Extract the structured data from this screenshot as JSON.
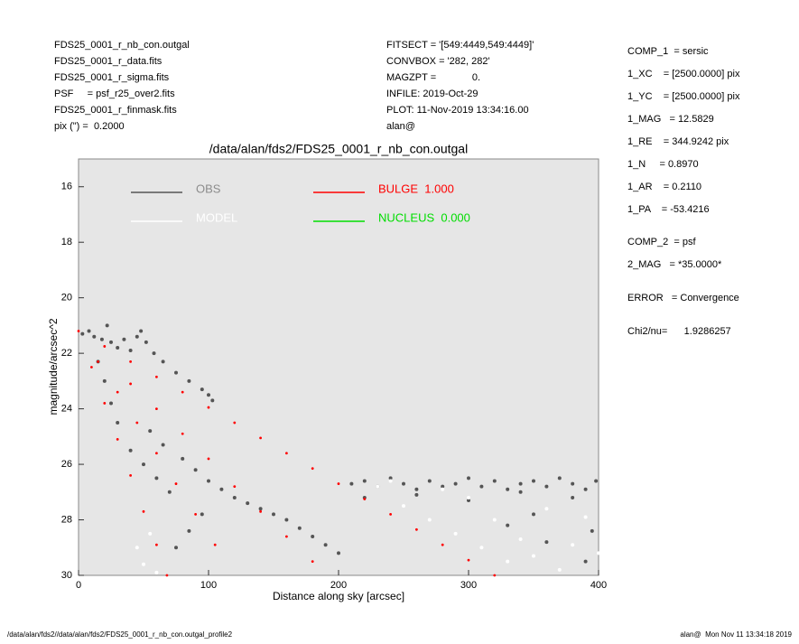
{
  "header": {
    "left": [
      "FDS25_0001_r_nb_con.outgal",
      "FDS25_0001_r_data.fits",
      "FDS25_0001_r_sigma.fits",
      "PSF     = psf_r25_over2.fits",
      "FDS25_0001_r_finmask.fits",
      "pix (\") =  0.2000"
    ],
    "middle": [
      "FITSECT = '[549:4449,549:4449]'",
      "CONVBOX = '282, 282'",
      "MAGZPT =             0.",
      "INFILE: 2019-Oct-29",
      "PLOT: 11-Nov-2019 13:34:16.00",
      "alan@"
    ]
  },
  "parameters": [
    "COMP_1  = sersic",
    "1_XC    = [2500.0000] pix",
    "1_YC    = [2500.0000] pix",
    "1_MAG   = 12.5829",
    "1_RE    = 344.9242 pix",
    "1_N     = 0.8970",
    "1_AR    = 0.2110",
    "1_PA    = -53.4216",
    "COMP_2  = psf",
    "2_MAG   = *35.0000*",
    "ERROR   = Convergence",
    "Chi2/nu=      1.9286257"
  ],
  "footer": {
    "left": "/data/alan/fds2//data/alan/fds2/FDS25_0001_r_nb_con.outgal_profile2",
    "right": "alan@  Mon Nov 11 13:34:18 2019"
  },
  "chart_data": {
    "type": "scatter",
    "title": "/data/alan/fds2/FDS25_0001_r_nb_con.outgal",
    "x_label": "Distance along sky [arcsec]",
    "y_label": "magnitude/arcsec^2",
    "xlim": [
      0,
      400
    ],
    "xticks": [
      0,
      100,
      200,
      300,
      400
    ],
    "ylim": [
      30,
      15
    ],
    "yticks": [
      16,
      18,
      20,
      22,
      24,
      26,
      28,
      30
    ],
    "grid": false,
    "legend": "upper left",
    "series": [
      {
        "name": "OBS",
        "color": "#555555",
        "x": [
          3,
          8,
          12,
          18,
          22,
          25,
          30,
          35,
          40,
          45,
          48,
          52,
          58,
          65,
          75,
          85,
          95,
          100,
          103,
          15,
          20,
          25,
          30,
          40,
          50,
          60,
          70,
          55,
          65,
          80,
          90,
          100,
          110,
          120,
          130,
          140,
          150,
          160,
          170,
          180,
          190,
          200,
          75,
          85,
          95,
          210,
          220,
          230,
          240,
          250,
          260,
          270,
          280,
          290,
          300,
          310,
          320,
          330,
          340,
          350,
          360,
          370,
          380,
          390,
          398,
          220,
          260,
          300,
          340,
          380,
          330,
          360,
          390,
          350,
          395
        ],
        "values": [
          21.3,
          21.2,
          21.4,
          21.5,
          21.0,
          21.6,
          21.8,
          21.5,
          21.9,
          21.4,
          21.2,
          21.6,
          22.0,
          22.3,
          22.7,
          23.0,
          23.3,
          23.5,
          23.7,
          22.3,
          23.0,
          23.8,
          24.5,
          25.5,
          26.0,
          26.5,
          27.0,
          24.8,
          25.3,
          25.8,
          26.2,
          26.6,
          26.9,
          27.2,
          27.4,
          27.6,
          27.8,
          28.0,
          28.3,
          28.6,
          28.9,
          29.2,
          29.0,
          28.4,
          27.8,
          26.7,
          26.6,
          26.8,
          26.5,
          26.7,
          26.9,
          26.6,
          26.8,
          26.7,
          26.5,
          26.8,
          26.6,
          26.9,
          26.7,
          26.6,
          26.8,
          26.5,
          26.7,
          26.9,
          26.6,
          27.2,
          27.1,
          27.3,
          27.0,
          27.2,
          28.2,
          28.8,
          29.5,
          27.8,
          28.4
        ]
      },
      {
        "name": "MODEL",
        "color": "#ffffff",
        "x": [
          45,
          50,
          55,
          60,
          230,
          250,
          270,
          290,
          300,
          310,
          320,
          330,
          340,
          350,
          360,
          370,
          380,
          390,
          400,
          280,
          240
        ],
        "values": [
          29.0,
          29.6,
          28.5,
          29.9,
          26.8,
          27.5,
          28.0,
          28.5,
          27.2,
          29.0,
          28.0,
          29.5,
          28.7,
          29.3,
          27.6,
          29.8,
          28.9,
          27.9,
          29.2,
          26.9,
          26.6
        ]
      },
      {
        "name": "BULGE  1.000",
        "color": "#ff0000",
        "x": [
          0,
          20,
          40,
          60,
          80,
          100,
          120,
          140,
          160,
          180,
          200,
          220,
          240,
          260,
          280,
          300,
          320,
          10,
          20,
          30,
          40,
          50,
          60,
          68,
          40,
          60,
          80,
          100,
          120,
          140,
          160,
          180,
          15,
          30,
          45,
          60,
          75,
          90,
          105
        ],
        "values": [
          21.2,
          21.75,
          22.3,
          22.85,
          23.4,
          23.95,
          24.5,
          25.05,
          25.6,
          26.15,
          26.7,
          27.25,
          27.8,
          28.35,
          28.9,
          29.45,
          30.0,
          22.5,
          23.8,
          25.1,
          26.4,
          27.7,
          28.9,
          30.0,
          23.1,
          24.0,
          24.9,
          25.8,
          26.8,
          27.7,
          28.6,
          29.5,
          22.3,
          23.4,
          24.5,
          25.6,
          26.7,
          27.8,
          28.9
        ]
      },
      {
        "name": "NUCLEUS  0.000",
        "color": "#00dd00",
        "x": [],
        "values": []
      }
    ]
  }
}
